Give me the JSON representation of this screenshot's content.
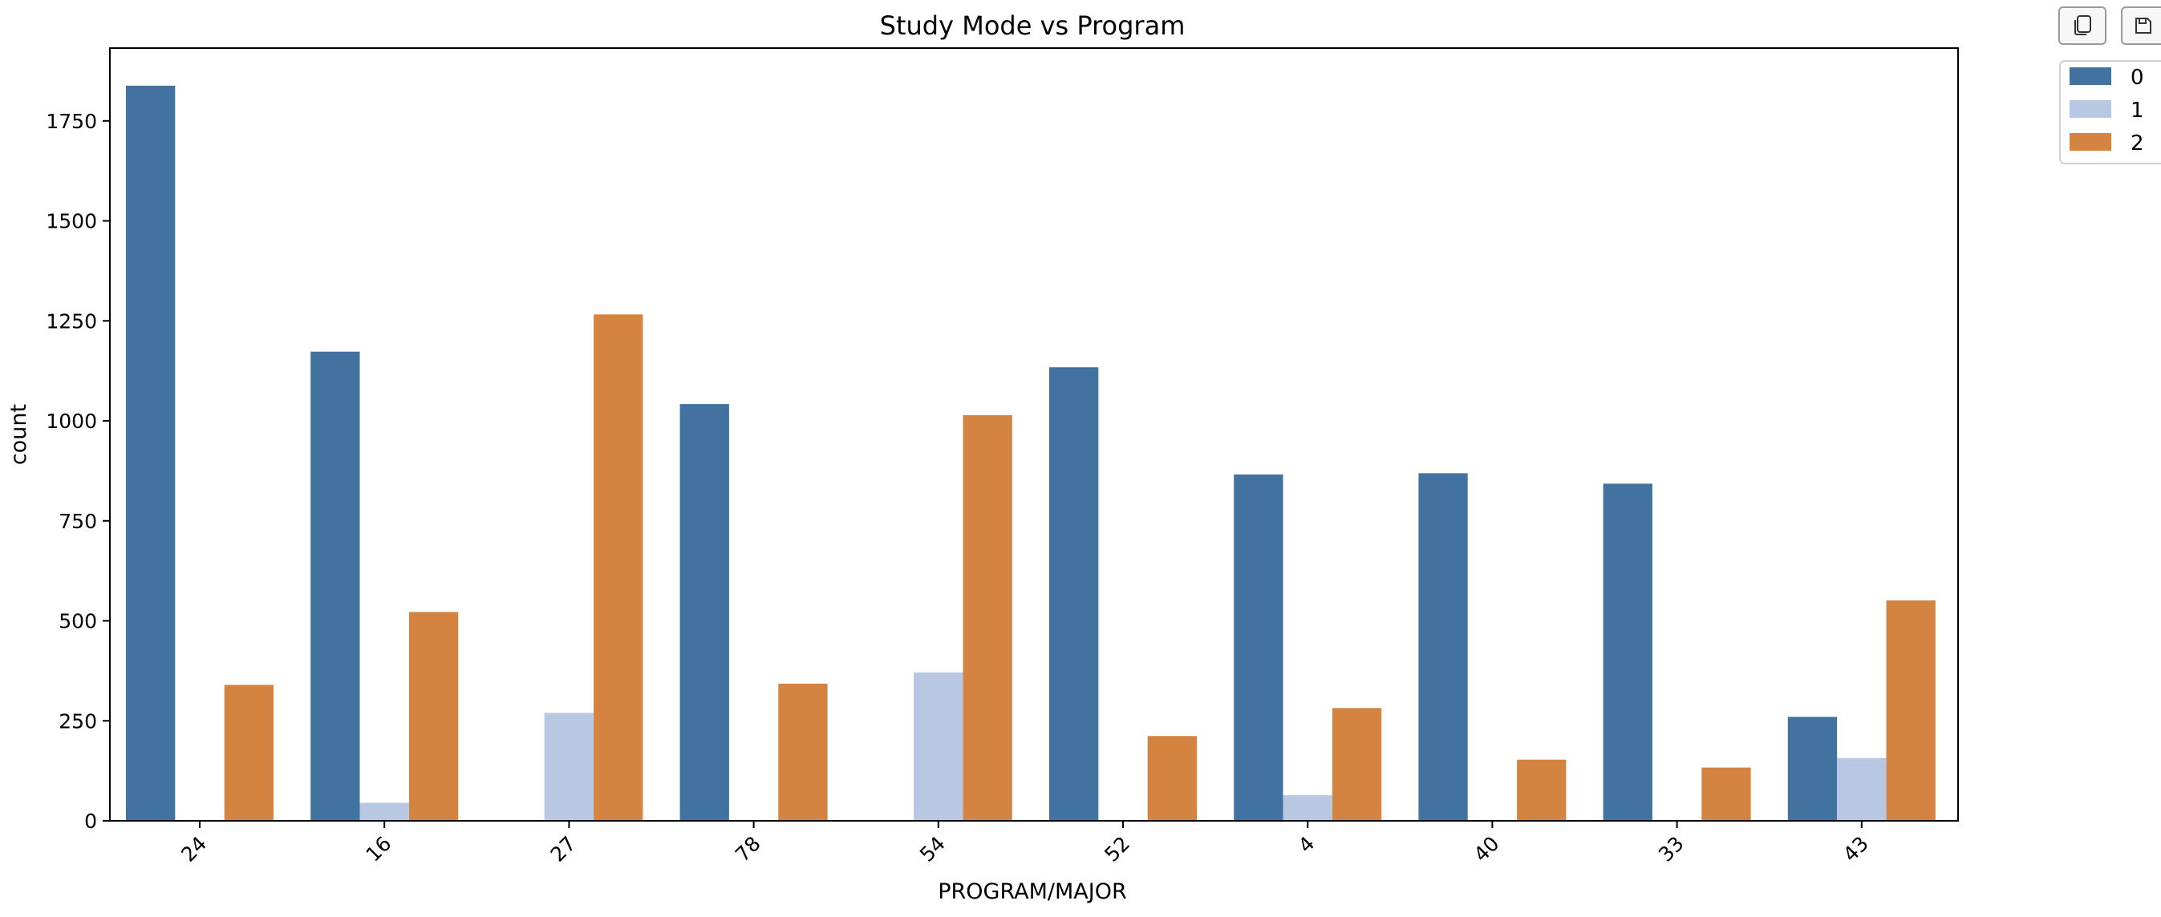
{
  "chart_data": {
    "type": "bar",
    "title": "Study Mode vs Program",
    "xlabel": "PROGRAM/MAJOR",
    "ylabel": "count",
    "categories": [
      "24",
      "16",
      "27",
      "78",
      "54",
      "52",
      "4",
      "40",
      "33",
      "43"
    ],
    "series": [
      {
        "name": "0",
        "color": "#4272a0",
        "values": [
          1838,
          1173,
          0,
          1042,
          0,
          1134,
          866,
          869,
          843,
          260
        ]
      },
      {
        "name": "1",
        "color": "#b8c8e3",
        "values": [
          0,
          45,
          270,
          0,
          371,
          0,
          64,
          0,
          0,
          157
        ]
      },
      {
        "name": "2",
        "color": "#d48440",
        "values": [
          340,
          522,
          1266,
          343,
          1014,
          212,
          282,
          153,
          133,
          551
        ]
      }
    ],
    "ylim": [
      0,
      1932
    ],
    "yticks": [
      0,
      250,
      500,
      750,
      1000,
      1250,
      1500,
      1750
    ],
    "grid": false,
    "legend": "outside-top-right"
  },
  "toolbar": {
    "copy_icon": "copy-icon",
    "save_icon": "save-icon"
  }
}
